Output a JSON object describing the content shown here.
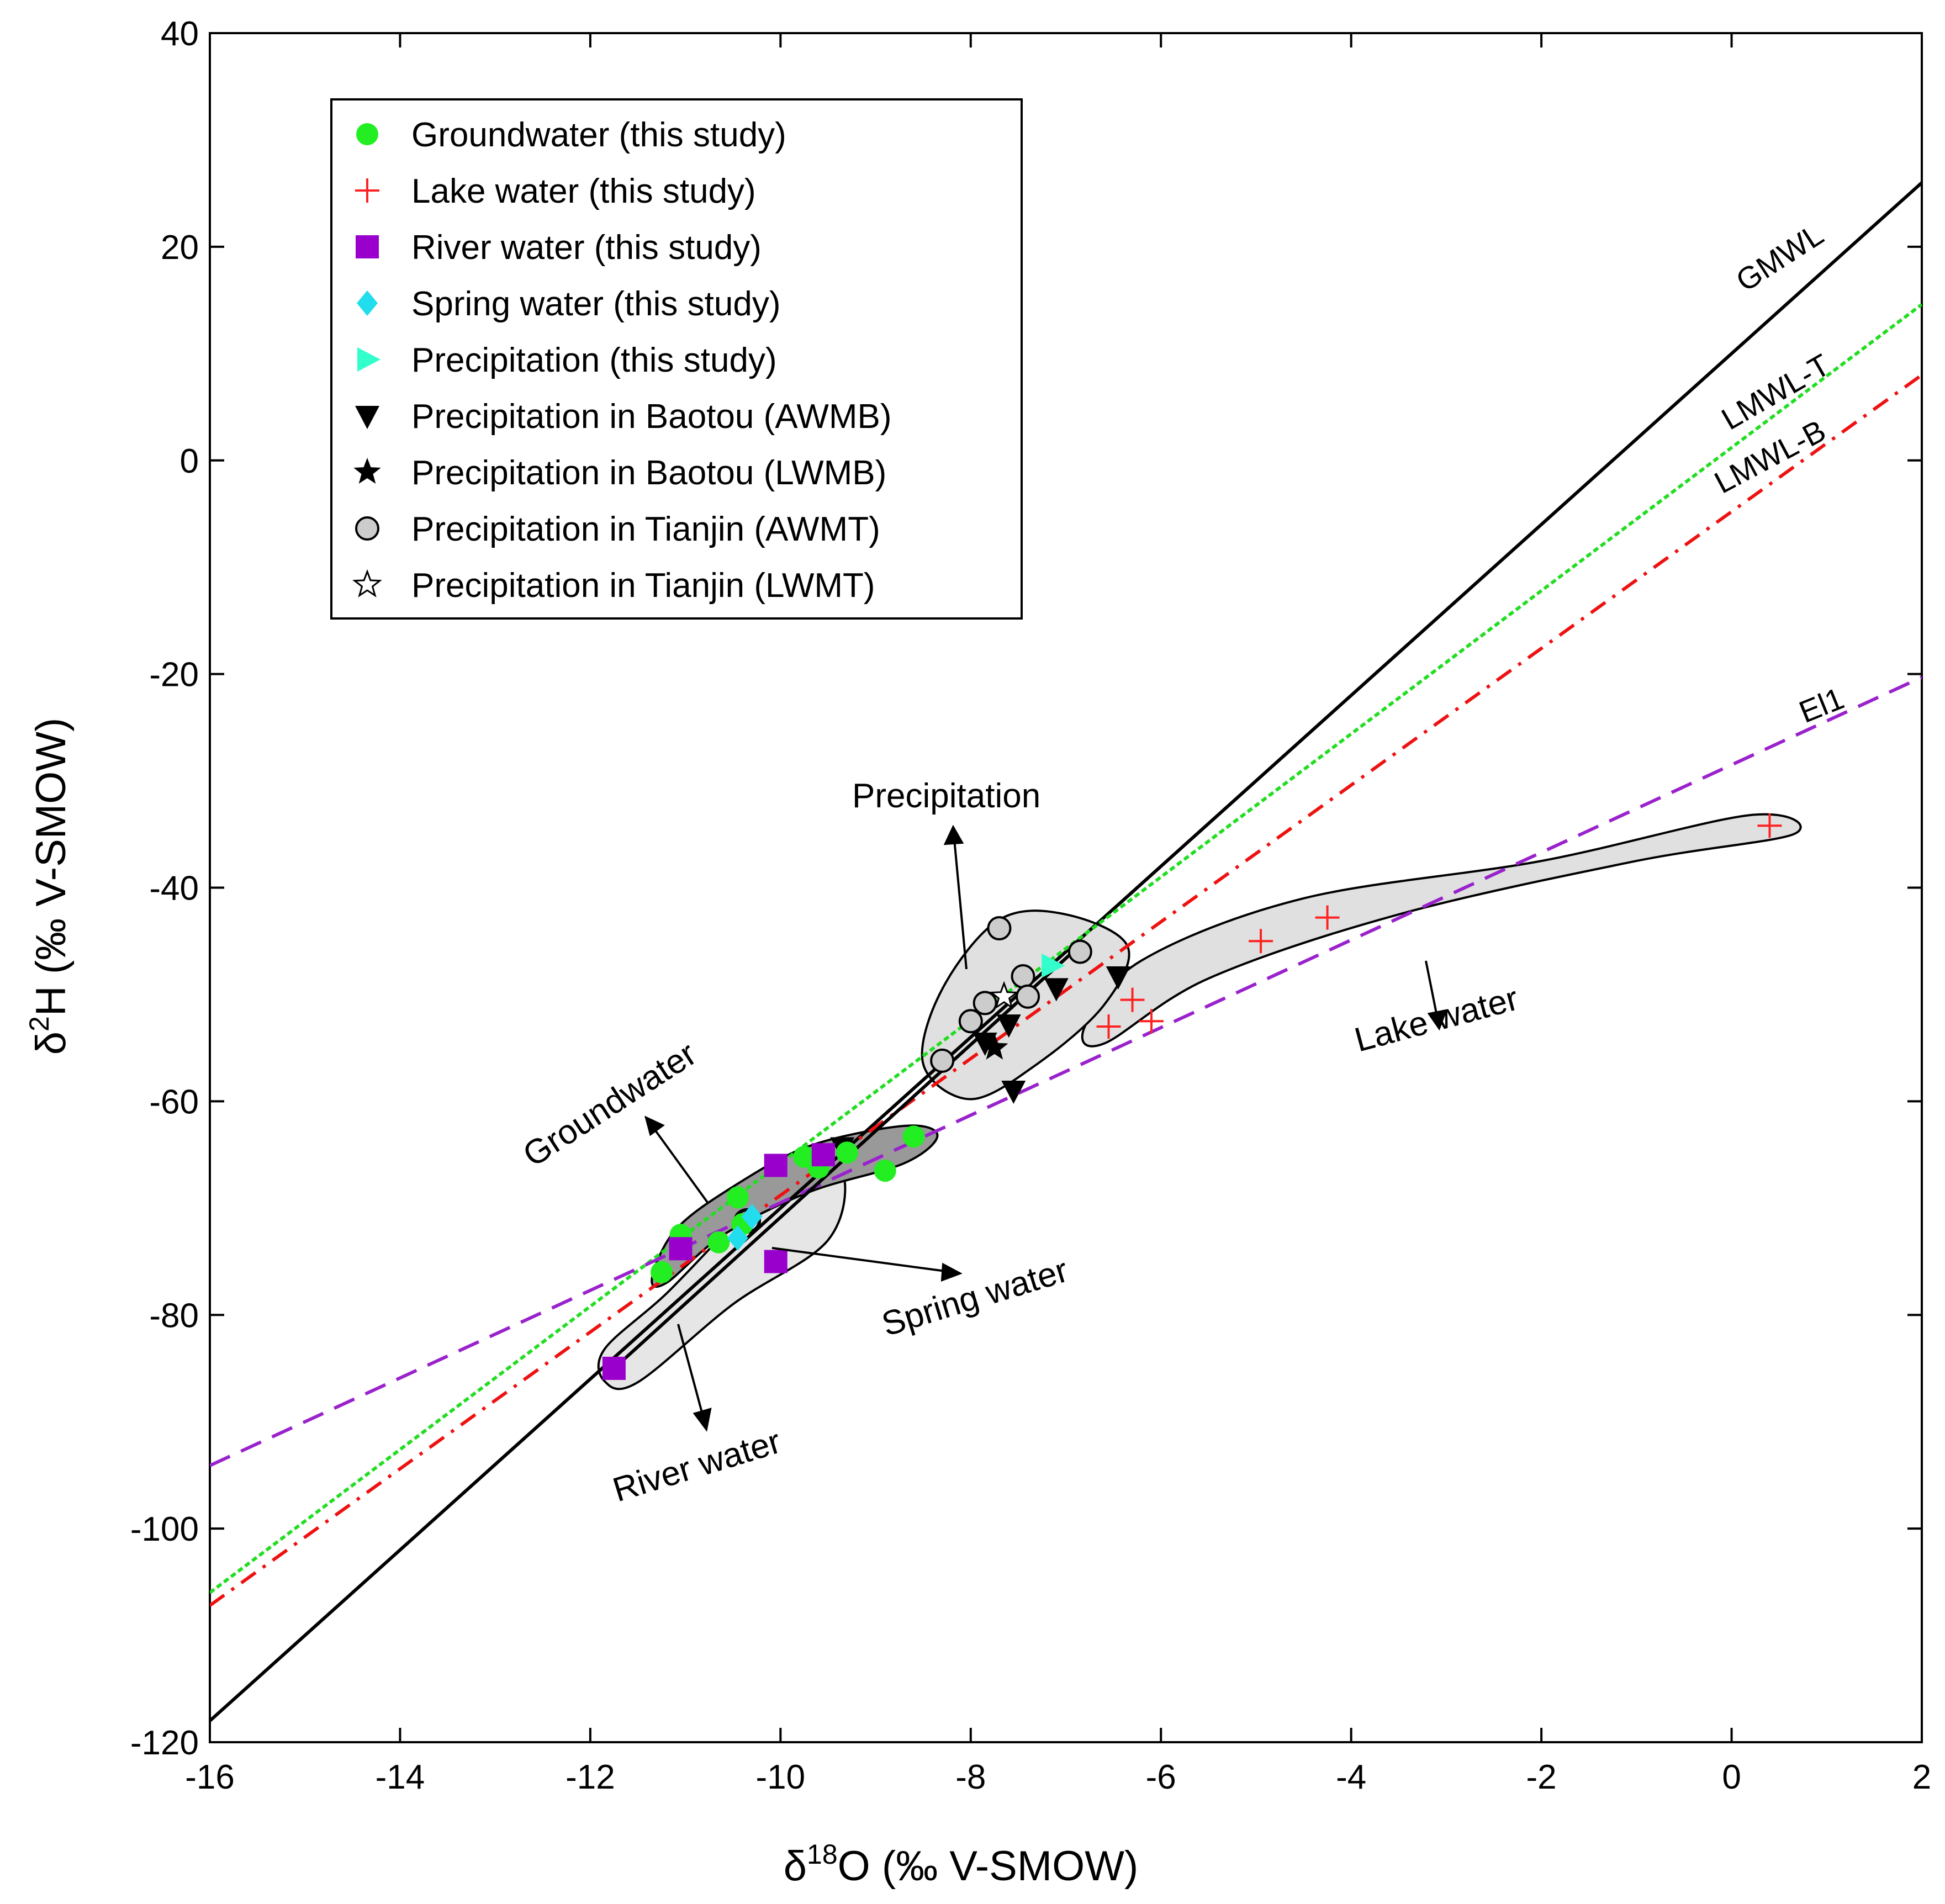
{
  "chart_data": {
    "type": "scatter",
    "title": "",
    "xlabel": "δ18O (‰ V-SMOW)",
    "ylabel": "δ2H (‰ V-SMOW)",
    "xlim": [
      -16,
      2
    ],
    "ylim": [
      -120,
      40
    ],
    "xticks": [
      -16,
      -14,
      -12,
      -10,
      -8,
      -6,
      -4,
      -2,
      0,
      2
    ],
    "yticks": [
      -120,
      -100,
      -80,
      -60,
      -40,
      -20,
      0,
      20,
      40
    ],
    "legend_position": "top-left",
    "series": [
      {
        "name": "Groundwater (this study)",
        "marker": "circle",
        "color": "#22ee22",
        "points": [
          [
            -11.25,
            -76.0
          ],
          [
            -11.05,
            -72.5
          ],
          [
            -10.65,
            -73.2
          ],
          [
            -10.45,
            -69.0
          ],
          [
            -10.4,
            -71.5
          ],
          [
            -9.75,
            -65.2
          ],
          [
            -9.6,
            -66.2
          ],
          [
            -9.3,
            -64.8
          ],
          [
            -8.9,
            -66.5
          ],
          [
            -8.6,
            -63.3
          ]
        ]
      },
      {
        "name": "Lake water (this study)",
        "marker": "plus",
        "color": "#ff2222",
        "points": [
          [
            -6.55,
            -53.0
          ],
          [
            -6.3,
            -50.5
          ],
          [
            -6.1,
            -52.5
          ],
          [
            -4.95,
            -45.0
          ],
          [
            -4.25,
            -42.8
          ],
          [
            0.4,
            -34.2
          ]
        ]
      },
      {
        "name": "River water (this study)",
        "marker": "square",
        "color": "#9900cc",
        "points": [
          [
            -11.75,
            -85.0
          ],
          [
            -11.05,
            -73.8
          ],
          [
            -10.05,
            -66.0
          ],
          [
            -10.05,
            -75.0
          ],
          [
            -9.55,
            -65.0
          ]
        ]
      },
      {
        "name": "Spring water (this study)",
        "marker": "diamond",
        "color": "#22ddee",
        "points": [
          [
            -10.45,
            -72.8
          ],
          [
            -10.3,
            -70.8
          ]
        ]
      },
      {
        "name": "Precipitation (this study)",
        "marker": "triangle-right",
        "color": "#33ffcc",
        "points": [
          [
            -7.15,
            -47.3
          ]
        ]
      },
      {
        "name": "Precipitation in Baotou (AWMB)",
        "marker": "triangle-down",
        "color": "#000000",
        "points": [
          [
            -9.35,
            -64.3
          ],
          [
            -7.85,
            -54.5
          ],
          [
            -7.6,
            -52.8
          ],
          [
            -7.55,
            -59.0
          ],
          [
            -7.1,
            -49.4
          ],
          [
            -6.45,
            -48.3
          ]
        ]
      },
      {
        "name": "Precipitation in Baotou (LWMB)",
        "marker": "star",
        "color": "#000000",
        "points": [
          [
            -7.75,
            -55.0
          ]
        ]
      },
      {
        "name": "Precipitation in Tianjin (AWMT)",
        "marker": "circle-open",
        "color": "#cccccc",
        "points": [
          [
            -8.3,
            -56.2
          ],
          [
            -8.0,
            -52.5
          ],
          [
            -7.85,
            -50.8
          ],
          [
            -7.7,
            -43.8
          ],
          [
            -7.45,
            -48.3
          ],
          [
            -7.4,
            -50.2
          ],
          [
            -6.85,
            -46.0
          ]
        ]
      },
      {
        "name": "Precipitation in Tianjin (LWMT)",
        "marker": "star-open",
        "color": "#ffffff",
        "points": [
          [
            -7.65,
            -50.2
          ]
        ]
      }
    ],
    "lines": [
      {
        "name": "GMWL",
        "color": "#000000",
        "style": "solid",
        "slope": 8,
        "intercept": 10
      },
      {
        "name": "LMWL-T",
        "color": "#22dd22",
        "style": "dotted",
        "slope": 6.7,
        "intercept": 1.2
      },
      {
        "name": "LMWL-B",
        "color": "#ee1111",
        "style": "dash-dot",
        "slope": 6.4,
        "intercept": -4.8
      },
      {
        "name": "El1",
        "color": "#9922cc",
        "style": "dashed",
        "slope": 4.1,
        "intercept": -28.5
      }
    ],
    "fit_line": {
      "name": "",
      "color": "#000000",
      "x": [
        -11.75,
        -6.8
      ],
      "y": [
        -85.0,
        -45.0
      ]
    },
    "regions": [
      {
        "label": "Precipitation",
        "fill": "#e0e0e0"
      },
      {
        "label": "Lake water",
        "fill": "#e0e0e0"
      },
      {
        "label": "River water",
        "fill": "#e6e6e6"
      },
      {
        "label": "Groundwater",
        "fill": "#999999"
      },
      {
        "label": "Spring water",
        "fill": ""
      }
    ]
  }
}
